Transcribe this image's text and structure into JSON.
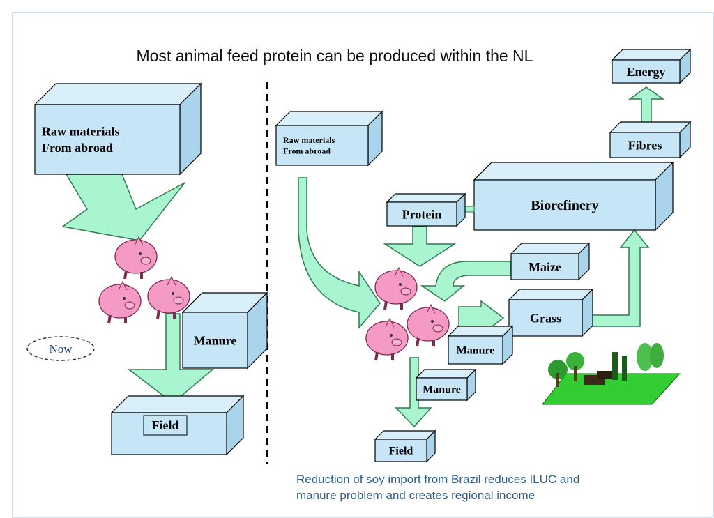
{
  "title": "Most animal feed protein can be produced within the NL",
  "left": {
    "raw_materials": [
      "Raw materials",
      "From abroad"
    ],
    "manure": "Manure",
    "field": "Field",
    "label": "Now"
  },
  "right": {
    "raw_materials": [
      "Raw materials",
      "From abroad"
    ],
    "protein": "Protein",
    "biorefinery": "Biorefinery",
    "energy": "Energy",
    "fibres": "Fibres",
    "maize": "Maize",
    "grass": "Grass",
    "manure_1": "Manure",
    "manure_2": "Manure",
    "field": "Field"
  },
  "caption": [
    "Reduction of soy import from Brazil reduces ILUC and",
    "manure problem and creates regional income"
  ]
}
